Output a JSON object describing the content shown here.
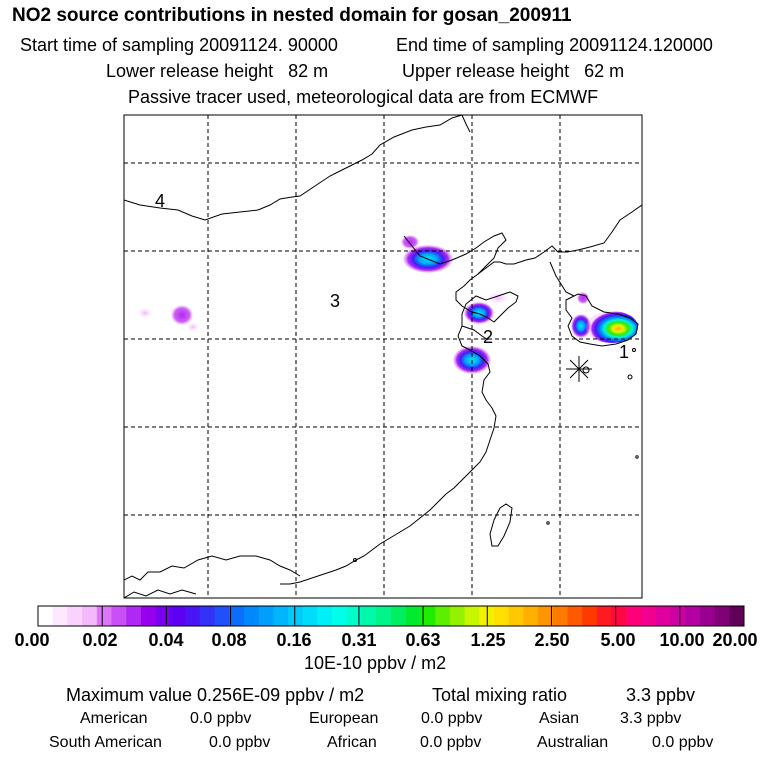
{
  "header": {
    "title": "NO2 source contributions in nested domain for gosan_200911",
    "start_label": "Start time of sampling 20091124. 90000",
    "end_label": "End time of sampling 20091124.120000",
    "lower_height_label": "Lower release height",
    "lower_height_value": "82 m",
    "upper_height_label": "Upper release height",
    "upper_height_value": "62 m",
    "note": "Passive tracer used, meteorological data are from ECMWF"
  },
  "map": {
    "region_labels": {
      "r1": "1",
      "r2": "2",
      "r3": "3",
      "r4": "4"
    },
    "receptor_marker": "star-icon"
  },
  "colorbar": {
    "ticks": [
      "0.00",
      "0.02",
      "0.04",
      "0.08",
      "0.16",
      "0.31",
      "0.63",
      "1.25",
      "2.50",
      "5.00",
      "10.00",
      "20.00"
    ],
    "unit": "10E-10 ppbv / m2",
    "colors": [
      "#ffffff",
      "#fde8fe",
      "#f9d2fd",
      "#f4b9fb",
      "#dd77f8",
      "#c850f5",
      "#b028f3",
      "#9600ee",
      "#7a00f0",
      "#5d00f3",
      "#4a14f6",
      "#3333f8",
      "#1f50fa",
      "#0a6efb",
      "#0088fc",
      "#009ffd",
      "#00b4fd",
      "#00c9fc",
      "#00ddfb",
      "#00f0f7",
      "#00ffe8",
      "#00fcc8",
      "#00f8a8",
      "#00f488",
      "#00ef60",
      "#00ea30",
      "#20ec00",
      "#5cef00",
      "#94f200",
      "#c8f500",
      "#f0f000",
      "#ffe000",
      "#ffc800",
      "#ffb000",
      "#ff9600",
      "#ff7a00",
      "#ff5a00",
      "#ff3a00",
      "#ff1a22",
      "#ff0844",
      "#ff0078",
      "#f20090",
      "#e000a0",
      "#cc00a4",
      "#b400a0",
      "#9a0090",
      "#800078",
      "#600058"
    ]
  },
  "summary": {
    "max_label": "Maximum value  0.256E-09 ppbv / m2",
    "total_label": "Total mixing ratio",
    "total_value": "3.3 ppbv",
    "regions": [
      {
        "name": "American",
        "value": "0.0 ppbv"
      },
      {
        "name": "European",
        "value": "0.0 ppbv"
      },
      {
        "name": "Asian",
        "value": "3.3 ppbv"
      },
      {
        "name": "South American",
        "value": "0.0 ppbv"
      },
      {
        "name": "African",
        "value": "0.0 ppbv"
      },
      {
        "name": "Australian",
        "value": "0.0 ppbv"
      }
    ]
  }
}
